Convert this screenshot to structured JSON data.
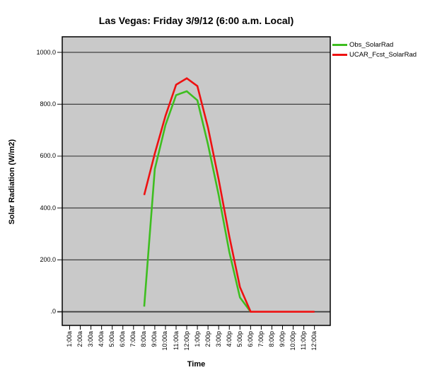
{
  "chart_data": {
    "type": "line",
    "title": "Las Vegas: Friday 3/9/12 (6:00 a.m. Local)",
    "xlabel": "Time",
    "ylabel": "Solar Radiation (W/m2)",
    "ylim": [
      0,
      1050
    ],
    "grid": "horizontal",
    "legend_position": "top-right-outside",
    "categories": [
      "1:00a",
      "2:00a",
      "3:00a",
      "4:00a",
      "5:00a",
      "6:00a",
      "7:00a",
      "8:00a",
      "9:00a",
      "10:00a",
      "11:00a",
      "12:00p",
      "1:00p",
      "2:00p",
      "3:00p",
      "4:00p",
      "5:00p",
      "6:00p",
      "7:00p",
      "8:00p",
      "9:00p",
      "10:00p",
      "11:00p",
      "12:00a"
    ],
    "y_ticks": {
      "values": [
        0,
        200,
        400,
        600,
        800,
        1000
      ],
      "labels": [
        ".0",
        "200.0",
        "400.0",
        "600.0",
        "800.0",
        "1000.0"
      ]
    },
    "series": [
      {
        "name": "Obs_SolarRad",
        "color": "#3EBE20",
        "values": [
          null,
          null,
          null,
          null,
          null,
          null,
          null,
          20,
          550,
          720,
          835,
          850,
          815,
          645,
          450,
          230,
          55,
          0,
          null,
          null,
          null,
          null,
          null,
          null
        ]
      },
      {
        "name": "UCAR_Fcst_SolarRad",
        "color": "#EE1111",
        "values": [
          null,
          null,
          null,
          null,
          null,
          null,
          null,
          450,
          610,
          755,
          875,
          900,
          870,
          710,
          510,
          290,
          95,
          0,
          0,
          0,
          0,
          0,
          0,
          0
        ]
      }
    ],
    "colors": {
      "plot_bg": "#C9C9C9",
      "grid": "#404040",
      "border": "#000000"
    }
  }
}
